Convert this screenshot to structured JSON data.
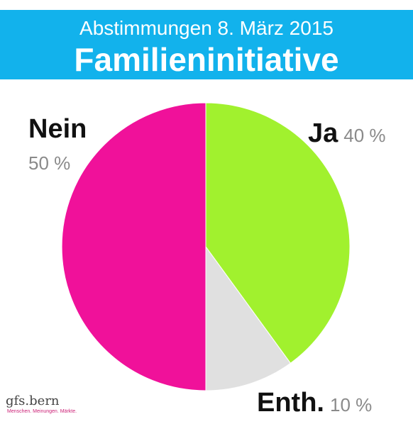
{
  "header": {
    "subtitle": "Abstimmungen 8. März 2015",
    "title": "Familieninitiative"
  },
  "logo": {
    "name": "gfs.bern",
    "tagline": "Menschen. Meinungen. Märkte."
  },
  "colors": {
    "header_bg": "#12b2ec",
    "ja": "#a1f12e",
    "enth": "#e0e0e0",
    "nein": "#f0119a"
  },
  "chart_data": {
    "type": "pie",
    "title": "Familieninitiative",
    "subtitle": "Abstimmungen 8. März 2015",
    "slices": [
      {
        "label": "Ja",
        "value": 40,
        "value_label": "40 %",
        "color": "#a1f12e"
      },
      {
        "label": "Enth.",
        "value": 10,
        "value_label": "10 %",
        "color": "#e0e0e0"
      },
      {
        "label": "Nein",
        "value": 50,
        "value_label": "50 %",
        "color": "#f0119a"
      }
    ]
  }
}
